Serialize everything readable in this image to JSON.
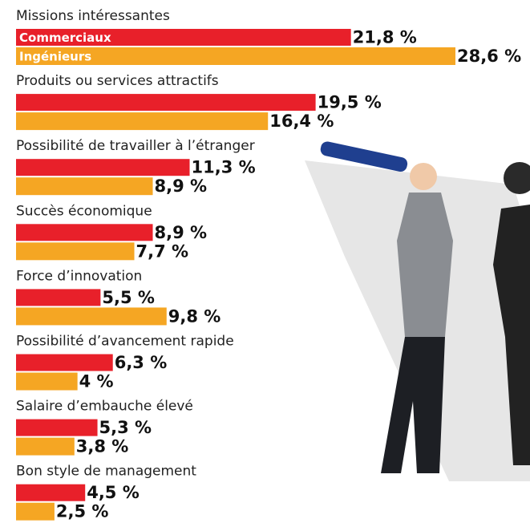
{
  "chart_data": {
    "type": "bar",
    "orientation": "horizontal",
    "categories": [
      "Missions intéressantes",
      "Produits ou services attractifs",
      "Possibilité de travailler à l’étranger",
      "Succès économique",
      "Force d’innovation",
      "Possibilité d’avancement rapide",
      "Salaire d’embauche élevé",
      "Bon style de management"
    ],
    "series": [
      {
        "name": "Commerciaux",
        "color": "#e8202a",
        "values": [
          21.8,
          19.5,
          11.3,
          8.9,
          5.5,
          6.3,
          5.3,
          4.5
        ],
        "value_labels": [
          "21,8 %",
          "19,5 %",
          "11,3 %",
          "8,9 %",
          "5,5 %",
          "6,3 %",
          "5,3 %",
          "4,5 %"
        ]
      },
      {
        "name": "Ingénieurs",
        "color": "#f5a623",
        "values": [
          28.6,
          16.4,
          8.9,
          7.7,
          9.8,
          4,
          3.8,
          2.5
        ],
        "value_labels": [
          "28,6 %",
          "16,4 %",
          "8,9 %",
          "7,7 %",
          "9,8 %",
          "4 %",
          "3,8 %",
          "2,5 %"
        ]
      }
    ]
  }
}
